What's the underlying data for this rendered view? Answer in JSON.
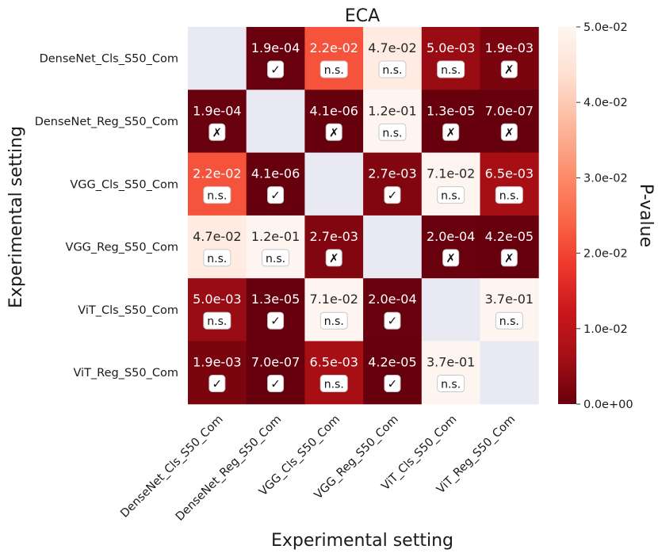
{
  "chart_data": {
    "type": "heatmap",
    "title": "ECA",
    "xlabel": "Experimental setting",
    "ylabel": "Experimental setting",
    "colorbar_label": "P-value",
    "colorbar_range": [
      0.0,
      0.05
    ],
    "colorbar_ticks": [
      "0.0e+00",
      "1.0e-02",
      "2.0e-02",
      "3.0e-02",
      "4.0e-02",
      "5.0e-02"
    ],
    "categories": [
      "DenseNet_Cls_S50_Com",
      "DenseNet_Reg_S50_Com",
      "VGG_Cls_S50_Com",
      "VGG_Reg_S50_Com",
      "ViT_Cls_S50_Com",
      "ViT_Reg_S50_Com"
    ],
    "values": [
      [
        null,
        0.00019,
        0.022,
        0.047,
        0.005,
        0.0019
      ],
      [
        0.00019,
        null,
        4.1e-06,
        0.12,
        1.3e-05,
        7e-07
      ],
      [
        0.022,
        4.1e-06,
        null,
        0.0027,
        0.071,
        0.0065
      ],
      [
        0.047,
        0.12,
        0.0027,
        null,
        0.0002,
        4.2e-05
      ],
      [
        0.005,
        1.3e-05,
        0.071,
        0.0002,
        null,
        0.37
      ],
      [
        0.0019,
        7e-07,
        0.0065,
        4.2e-05,
        0.37,
        null
      ]
    ],
    "labels": [
      [
        "",
        "1.9e-04",
        "2.2e-02",
        "4.7e-02",
        "5.0e-03",
        "1.9e-03"
      ],
      [
        "1.9e-04",
        "",
        "4.1e-06",
        "1.2e-01",
        "1.3e-05",
        "7.0e-07"
      ],
      [
        "2.2e-02",
        "4.1e-06",
        "",
        "2.7e-03",
        "7.1e-02",
        "6.5e-03"
      ],
      [
        "4.7e-02",
        "1.2e-01",
        "2.7e-03",
        "",
        "2.0e-04",
        "4.2e-05"
      ],
      [
        "5.0e-03",
        "1.3e-05",
        "7.1e-02",
        "2.0e-04",
        "",
        "3.7e-01"
      ],
      [
        "1.9e-03",
        "7.0e-07",
        "6.5e-03",
        "4.2e-05",
        "3.7e-01",
        ""
      ]
    ],
    "markers": [
      [
        "",
        "✓",
        "n.s.",
        "n.s.",
        "n.s.",
        "✗"
      ],
      [
        "✗",
        "",
        "✗",
        "n.s.",
        "✗",
        "✗"
      ],
      [
        "n.s.",
        "✓",
        "",
        "✓",
        "n.s.",
        "n.s."
      ],
      [
        "n.s.",
        "n.s.",
        "✗",
        "",
        "✗",
        "✗"
      ],
      [
        "n.s.",
        "✓",
        "n.s.",
        "✓",
        "",
        "n.s."
      ],
      [
        "✓",
        "✓",
        "n.s.",
        "✓",
        "n.s.",
        ""
      ]
    ],
    "colors": {
      "diagonal": "#e8e9f2",
      "colormap": [
        "#67000d",
        "#a50f15",
        "#cb181d",
        "#ef3b2c",
        "#fb6a4a",
        "#fc9272",
        "#fcbba1",
        "#fee0d2",
        "#fff5f0"
      ]
    }
  }
}
